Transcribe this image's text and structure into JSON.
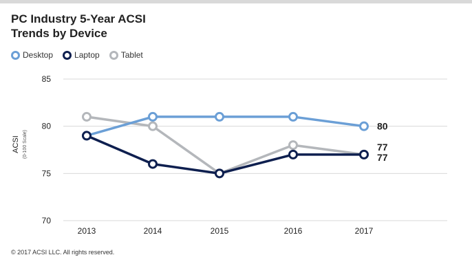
{
  "footer": "© 2017 ACSI LLC. All rights reserved.",
  "colors": {
    "desktop": "#6b9fd6",
    "laptop": "#0e1f4f",
    "tablet": "#b4b7bb",
    "grid": "#d8d8d8",
    "text": "#222222"
  },
  "chart_data": {
    "type": "line",
    "title": "PC Industry 5-Year ACSI Trends by Device",
    "title_lines": [
      "PC Industry 5-Year ACSI",
      "Trends by Device"
    ],
    "xlabel": "",
    "ylabel": "ACSI",
    "ylabel_sub": "(0-100 Scale)",
    "x": [
      "2013",
      "2014",
      "2015",
      "2016",
      "2017"
    ],
    "ylim": [
      70,
      85
    ],
    "yticks": [
      "85",
      "80",
      "75",
      "70"
    ],
    "grid": true,
    "legend_position": "top-left",
    "series": [
      {
        "name": "Desktop",
        "color_key": "desktop",
        "values": [
          79,
          81,
          81,
          81,
          80
        ],
        "end_label": "80"
      },
      {
        "name": "Laptop",
        "color_key": "laptop",
        "values": [
          79,
          76,
          75,
          77,
          77
        ],
        "end_label": "77"
      },
      {
        "name": "Tablet",
        "color_key": "tablet",
        "values": [
          81,
          80,
          75,
          78,
          77
        ],
        "end_label": "77"
      }
    ]
  }
}
